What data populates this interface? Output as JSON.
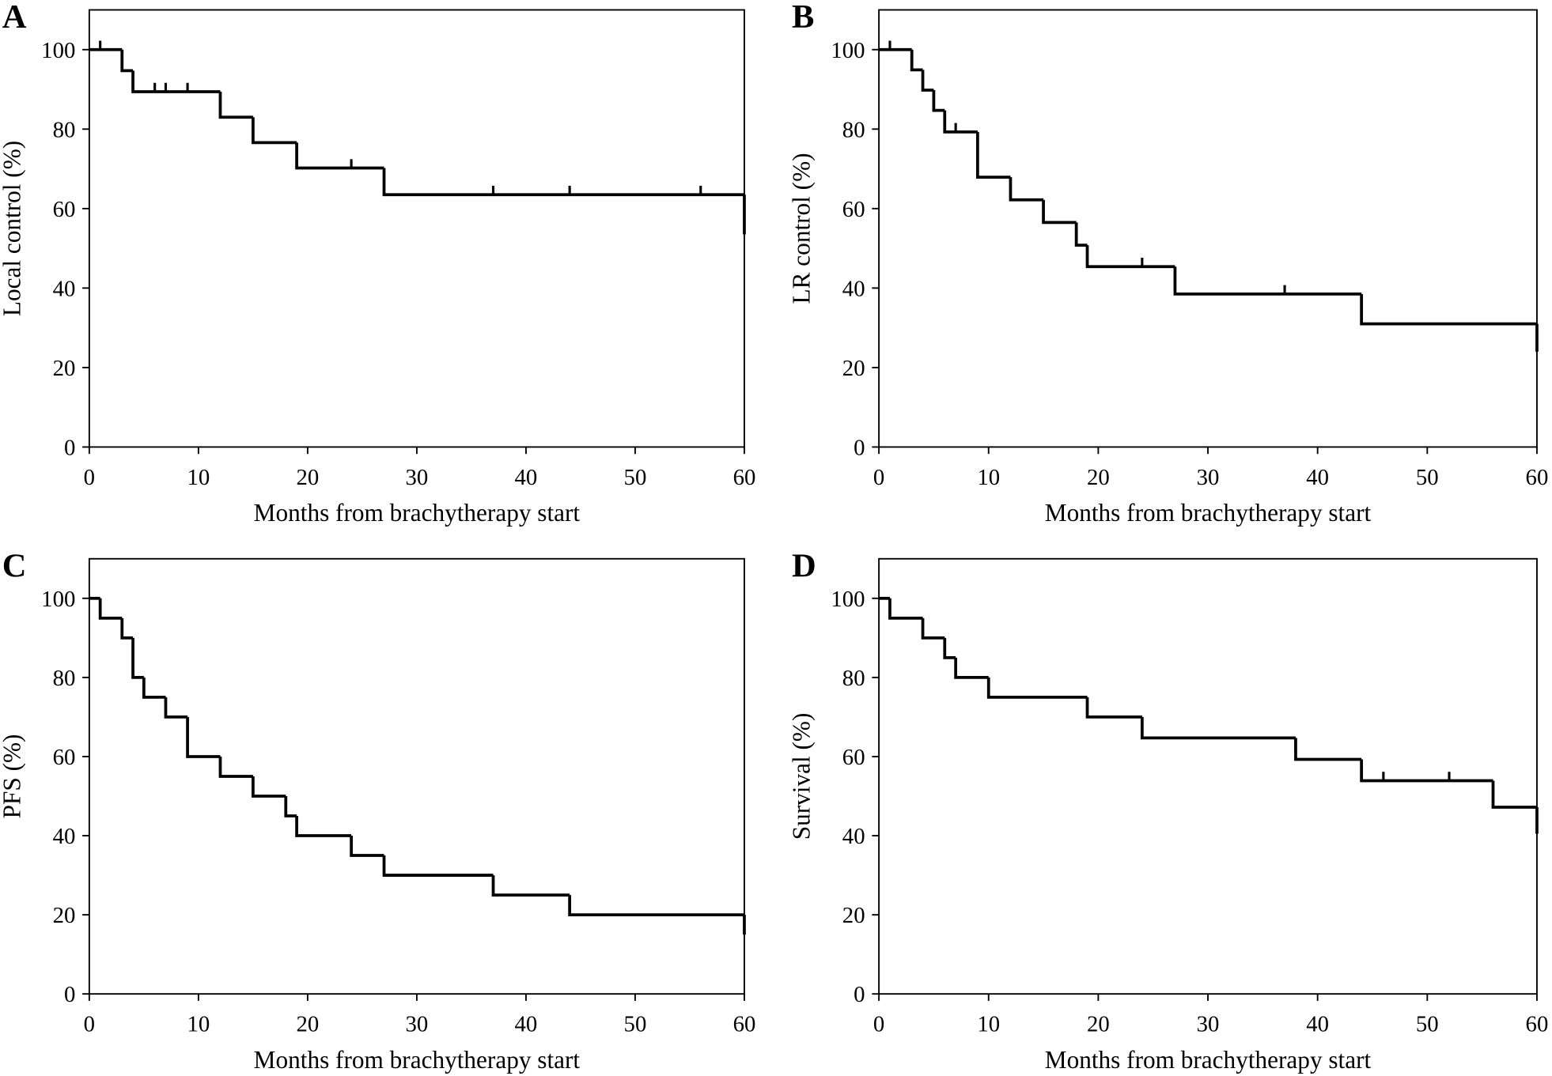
{
  "chart_data": [
    {
      "type": "step",
      "panel_label": "A",
      "ylabel": "Local control (%)",
      "xlabel": "Months from brachytherapy start",
      "x": [
        0,
        3,
        4,
        12,
        15,
        19,
        27,
        60
      ],
      "y": [
        100,
        94.7,
        89.4,
        83.0,
        76.6,
        70.2,
        63.5,
        53.5
      ],
      "censor_x": [
        1,
        6,
        7,
        9,
        24,
        37,
        44,
        56
      ],
      "censor_y": [
        100,
        89.4,
        89.4,
        89.4,
        70.2,
        63.5,
        63.5,
        63.5
      ],
      "color": "#000000",
      "xlim": [
        0,
        60
      ],
      "ylim": [
        0,
        110
      ],
      "xticks": [
        0,
        10,
        20,
        30,
        40,
        50,
        60
      ],
      "yticks": [
        0,
        20,
        40,
        60,
        80,
        100
      ]
    },
    {
      "type": "step",
      "panel_label": "B",
      "ylabel": "LR control (%)",
      "xlabel": "Months from brachytherapy start",
      "x": [
        0,
        3,
        4,
        5,
        6,
        9,
        12,
        15,
        18,
        19,
        27,
        44,
        60
      ],
      "y": [
        100,
        94.9,
        89.8,
        84.7,
        79.3,
        67.9,
        62.2,
        56.5,
        50.8,
        45.4,
        38.5,
        31.0,
        24.0
      ],
      "censor_x": [
        1,
        7,
        24,
        37
      ],
      "censor_y": [
        100,
        79.3,
        45.4,
        38.5
      ],
      "color": "#000000",
      "xlim": [
        0,
        60
      ],
      "ylim": [
        0,
        110
      ],
      "xticks": [
        0,
        10,
        20,
        30,
        40,
        50,
        60
      ],
      "yticks": [
        0,
        20,
        40,
        60,
        80,
        100
      ]
    },
    {
      "type": "step",
      "panel_label": "C",
      "ylabel": "PFS (%)",
      "xlabel": "Months from brachytherapy start",
      "x": [
        0,
        1,
        3,
        4,
        5,
        7,
        9,
        12,
        15,
        18,
        19,
        24,
        27,
        37,
        44,
        60
      ],
      "y": [
        100,
        95,
        90,
        80,
        75,
        70,
        60,
        55,
        50,
        45,
        40,
        35,
        30,
        25,
        20,
        15
      ],
      "censor_x": [],
      "censor_y": [],
      "color": "#000000",
      "xlim": [
        0,
        60
      ],
      "ylim": [
        0,
        110
      ],
      "xticks": [
        0,
        10,
        20,
        30,
        40,
        50,
        60
      ],
      "yticks": [
        0,
        20,
        40,
        60,
        80,
        100
      ]
    },
    {
      "type": "step",
      "panel_label": "D",
      "ylabel": "Survival (%)",
      "xlabel": "Months from brachytherapy start",
      "x": [
        0,
        1,
        4,
        6,
        7,
        10,
        19,
        24,
        38,
        44,
        56,
        60
      ],
      "y": [
        100,
        95,
        90,
        85,
        80,
        75,
        70,
        64.7,
        59.3,
        53.9,
        47.2,
        40.5
      ],
      "censor_x": [
        46,
        52
      ],
      "censor_y": [
        53.9,
        53.9
      ],
      "color": "#000000",
      "xlim": [
        0,
        60
      ],
      "ylim": [
        0,
        110
      ],
      "xticks": [
        0,
        10,
        20,
        30,
        40,
        50,
        60
      ],
      "yticks": [
        0,
        20,
        40,
        60,
        80,
        100
      ]
    }
  ]
}
